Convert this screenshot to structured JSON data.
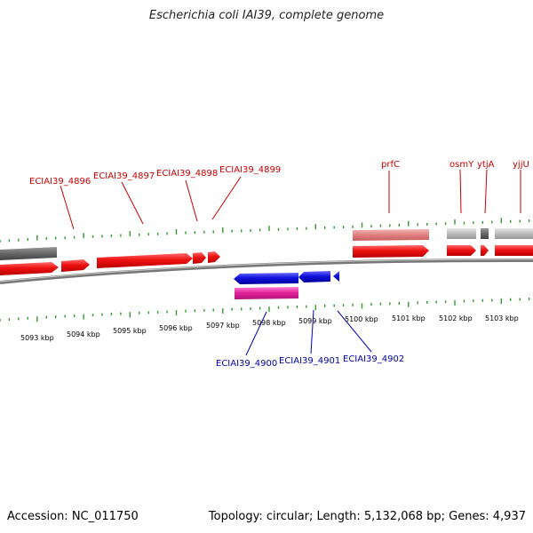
{
  "title": "Escherichia coli IAI39, complete genome",
  "footer": {
    "accession": "Accession: NC_011750",
    "summary": "Topology: circular; Length: 5,132,068 bp; Genes: 4,937"
  },
  "colors": {
    "forward_cds": "#ee1111",
    "forward_rna": "#e08080",
    "reverse_cds": "#1111dd",
    "reverse_rna": "#e0209a",
    "gray_feature": "#bbbbbb",
    "dark_gray": "#666666",
    "tick": "#339933",
    "backbone": "#808080",
    "forward_label": "#cc0000",
    "reverse_label": "#0000aa"
  },
  "scale": {
    "tick_labels": [
      "5093 kbp",
      "5094 kbp",
      "5095 kbp",
      "5096 kbp",
      "5097 kbp",
      "5098 kbp",
      "5099 kbp",
      "5100 kbp",
      "5101 kbp",
      "5102 kbp",
      "5103 kbp"
    ]
  },
  "forward_labels": [
    {
      "name": "ECIAI39_4896"
    },
    {
      "name": "ECIAI39_4897"
    },
    {
      "name": "ECIAI39_4898"
    },
    {
      "name": "ECIAI39_4899"
    },
    {
      "name": "prfC"
    },
    {
      "name": "osmY"
    },
    {
      "name": "ytjA"
    },
    {
      "name": "yjjU"
    }
  ],
  "reverse_labels": [
    {
      "name": "ECIAI39_4900"
    },
    {
      "name": "ECIAI39_4901"
    },
    {
      "name": "ECIAI39_4902"
    }
  ]
}
